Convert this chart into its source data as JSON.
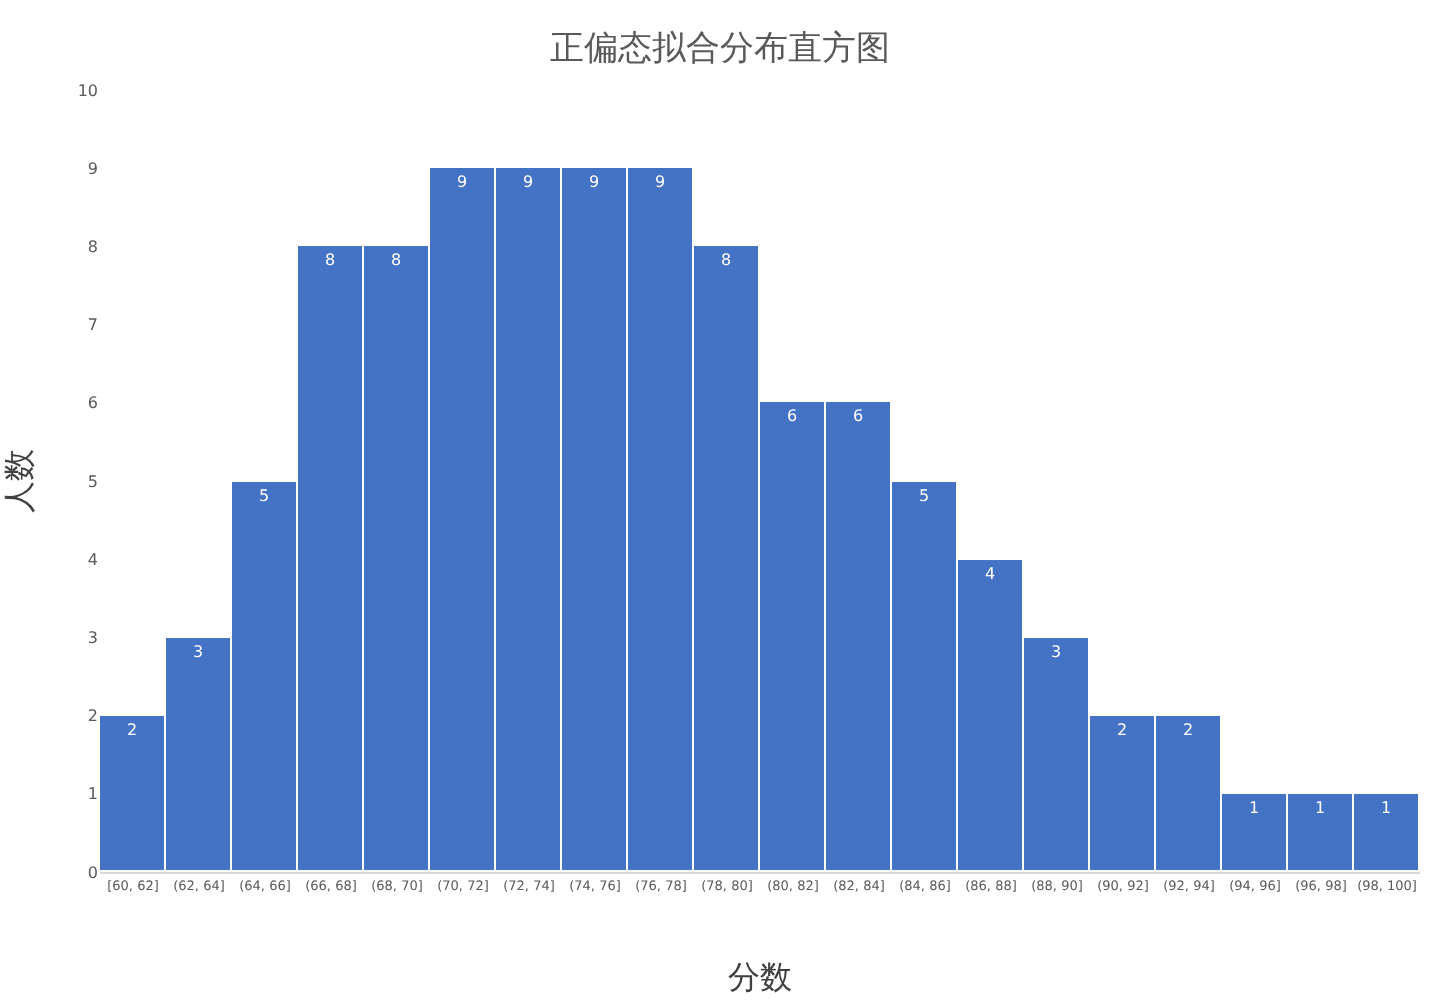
{
  "chart_data": {
    "type": "bar",
    "title": "正偏态拟合分布直方图",
    "xlabel": "分数",
    "ylabel": "人数",
    "categories": [
      "[60, 62]",
      "(62, 64]",
      "(64, 66]",
      "(66, 68]",
      "(68, 70]",
      "(70, 72]",
      "(72, 74]",
      "(74, 76]",
      "(76, 78]",
      "(78, 80]",
      "(80, 82]",
      "(82, 84]",
      "(84, 86]",
      "(86, 88]",
      "(88, 90]",
      "(90, 92]",
      "(92, 94]",
      "(94, 96]",
      "(96, 98]",
      "(98, 100]"
    ],
    "values": [
      2,
      3,
      5,
      8,
      8,
      9,
      9,
      9,
      9,
      8,
      6,
      6,
      5,
      4,
      3,
      2,
      2,
      1,
      1,
      1
    ],
    "color": "#4472c4",
    "ylim": [
      0,
      10
    ],
    "yticks": [
      0,
      1,
      2,
      3,
      4,
      5,
      6,
      7,
      8,
      9,
      10
    ],
    "grid": false,
    "data_labels": true
  }
}
